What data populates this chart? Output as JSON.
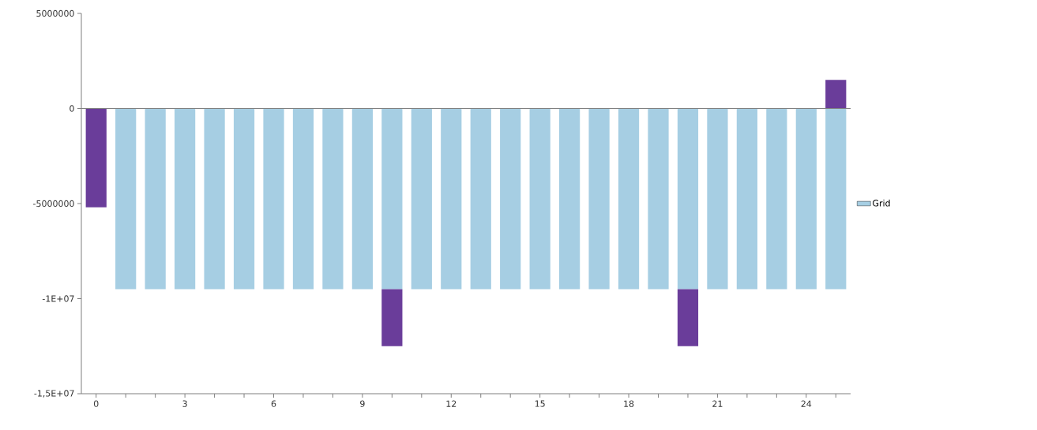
{
  "chart_data": {
    "type": "bar",
    "stacked": true,
    "legend": "right",
    "categories": [
      "0",
      null,
      null,
      "3",
      null,
      null,
      "6",
      null,
      null,
      "9",
      null,
      null,
      "12",
      null,
      null,
      "15",
      null,
      null,
      "18",
      null,
      null,
      "21",
      null,
      null,
      "24",
      null
    ],
    "series": [
      {
        "name": "Grid",
        "color": "#a6cee3",
        "values": [
          0,
          -9500000,
          -9500000,
          -9500000,
          -9500000,
          -9500000,
          -9500000,
          -9500000,
          -9500000,
          -9500000,
          -9500000,
          -9500000,
          -9500000,
          -9500000,
          -9500000,
          -9500000,
          -9500000,
          -9500000,
          -9500000,
          -9500000,
          -9500000,
          -9500000,
          -9500000,
          -9500000,
          -9500000,
          -9500000
        ]
      },
      {
        "color": "#6a3d9a",
        "values": [
          -5200000,
          0,
          0,
          0,
          0,
          0,
          0,
          0,
          0,
          0,
          -3000000,
          0,
          0,
          0,
          0,
          0,
          0,
          0,
          0,
          0,
          -3000000,
          0,
          0,
          0,
          0,
          1500000
        ]
      }
    ],
    "ylim": [
      -15000000,
      5000000
    ],
    "yticks": [
      5000000,
      0,
      -5000000,
      {
        "value": -10000000,
        "label": "-1E+07"
      },
      {
        "value": -15000000,
        "label": "-1,5E+07"
      }
    ]
  }
}
